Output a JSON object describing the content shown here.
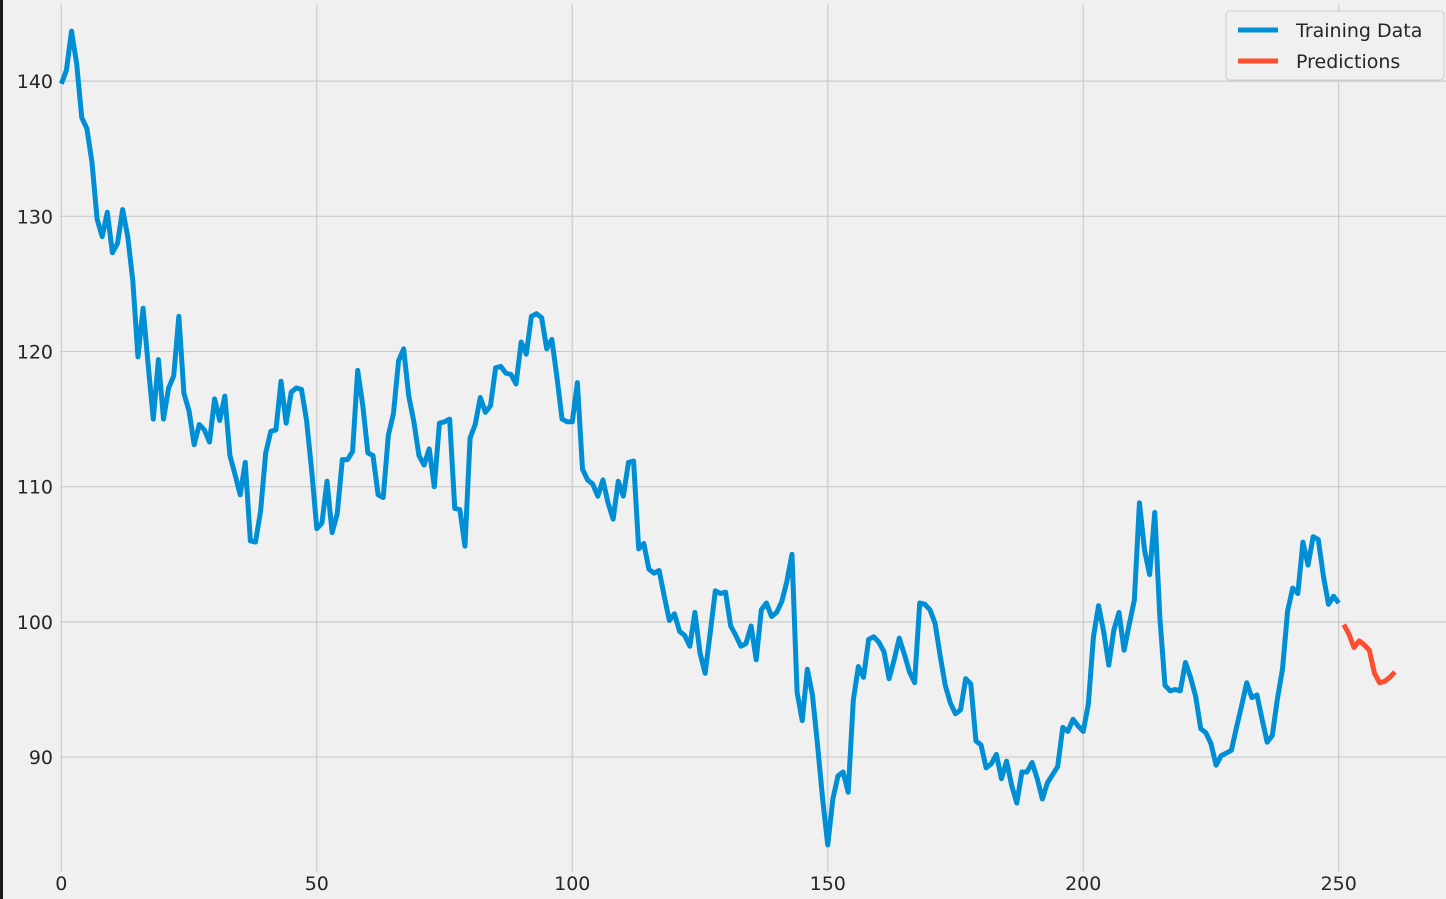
{
  "chart_data": {
    "type": "line",
    "title": "",
    "xlabel": "",
    "ylabel": "",
    "xlim": [
      -12,
      271
    ],
    "ylim": [
      81.5,
      146
    ],
    "xticks": [
      0,
      50,
      100,
      150,
      200,
      250
    ],
    "yticks": [
      90,
      100,
      110,
      120,
      130,
      140
    ],
    "grid": true,
    "legend_position": "top-right",
    "series": [
      {
        "name": "Training Data",
        "color": "#008fd5",
        "x_start": 0,
        "values": [
          139.8,
          140.8,
          143.7,
          141.3,
          137.3,
          136.5,
          134.0,
          129.8,
          128.5,
          130.3,
          127.3,
          128.0,
          130.5,
          128.5,
          125.2,
          119.6,
          123.2,
          119.0,
          115.0,
          119.4,
          115.0,
          117.3,
          118.2,
          122.6,
          116.9,
          115.6,
          113.1,
          114.6,
          114.2,
          113.3,
          116.5,
          114.9,
          116.7,
          112.3,
          110.9,
          109.4,
          111.8,
          106.0,
          105.9,
          108.2,
          112.5,
          114.1,
          114.2,
          117.8,
          114.7,
          117.0,
          117.3,
          117.2,
          114.9,
          111.2,
          106.9,
          107.3,
          110.4,
          106.6,
          108.0,
          112.0,
          112.0,
          112.6,
          118.6,
          116.0,
          112.5,
          112.3,
          109.4,
          109.2,
          113.8,
          115.4,
          119.3,
          120.2,
          116.7,
          114.8,
          112.3,
          111.6,
          112.8,
          110.0,
          114.7,
          114.8,
          115.0,
          108.4,
          108.3,
          105.6,
          113.6,
          114.6,
          116.6,
          115.5,
          116.0,
          118.8,
          118.9,
          118.4,
          118.3,
          117.6,
          120.7,
          119.8,
          122.6,
          122.8,
          122.5,
          120.2,
          120.9,
          118.1,
          115.0,
          114.8,
          114.8,
          117.7,
          111.3,
          110.5,
          110.2,
          109.3,
          110.5,
          108.8,
          107.6,
          110.4,
          109.3,
          111.8,
          111.9,
          105.4,
          105.8,
          103.9,
          103.6,
          103.8,
          101.9,
          100.1,
          100.6,
          99.3,
          99.0,
          98.2,
          100.7,
          97.7,
          96.2,
          99.2,
          102.3,
          102.1,
          102.2,
          99.7,
          99.0,
          98.2,
          98.4,
          99.7,
          97.2,
          100.9,
          101.4,
          100.4,
          100.7,
          101.5,
          103.0,
          105.0,
          94.8,
          92.7,
          96.5,
          94.6,
          90.9,
          86.9,
          83.5,
          86.9,
          88.6,
          88.9,
          87.4,
          94.2,
          96.7,
          95.9,
          98.7,
          98.9,
          98.5,
          97.8,
          95.8,
          97.2,
          98.8,
          97.6,
          96.3,
          95.5,
          101.4,
          101.3,
          100.9,
          99.9,
          97.5,
          95.3,
          94.0,
          93.2,
          93.5,
          95.8,
          95.4,
          91.2,
          90.9,
          89.2,
          89.5,
          90.2,
          88.4,
          89.7,
          87.9,
          86.6,
          88.9,
          88.9,
          89.6,
          88.4,
          86.9,
          88.1,
          88.7,
          89.3,
          92.2,
          91.9,
          92.8,
          92.3,
          91.9,
          93.9,
          98.9,
          101.2,
          99.3,
          96.8,
          99.4,
          100.7,
          97.9,
          99.8,
          101.6,
          108.8,
          105.3,
          103.5,
          108.1,
          100.3,
          95.3,
          94.9,
          95.0,
          94.9,
          97.0,
          95.9,
          94.5,
          92.1,
          91.8,
          91.0,
          89.4,
          90.1,
          90.3,
          90.5,
          92.2,
          93.8,
          95.5,
          94.4,
          94.6,
          92.8,
          91.1,
          91.6,
          94.3,
          96.5,
          100.8,
          102.5,
          102.1,
          105.9,
          104.2,
          106.3,
          106.1,
          103.4,
          101.3,
          101.9,
          101.4
        ]
      },
      {
        "name": "Predictions",
        "color": "#fc4f30",
        "x_start": 251,
        "values": [
          99.8,
          99.1,
          98.1,
          98.6,
          98.3,
          97.9,
          96.2,
          95.5,
          95.6,
          95.9,
          96.3
        ]
      }
    ]
  }
}
